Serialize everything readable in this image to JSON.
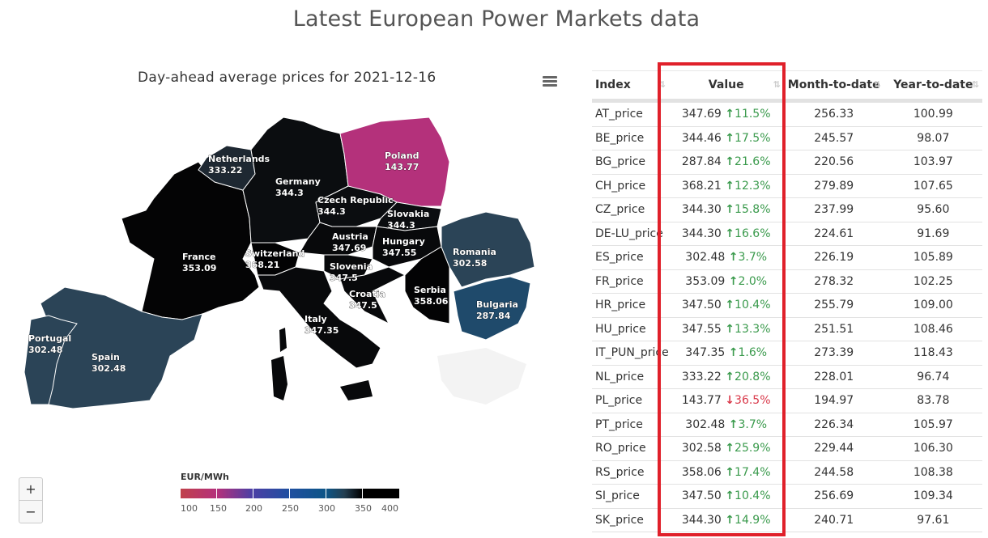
{
  "page": {
    "title": "Latest European Power Markets data"
  },
  "map": {
    "title": "Day-ahead average prices for 2021-12-16",
    "menu_icon": "hamburger-menu-icon",
    "zoom_in_label": "+",
    "zoom_out_label": "−",
    "legend": {
      "title": "EUR/MWh",
      "ticks": [
        "100",
        "150",
        "200",
        "250",
        "300",
        "350",
        "400"
      ],
      "colors": [
        "#c0414b",
        "#b5307b",
        "#4a3fa5",
        "#1f4fa0",
        "#0d5587",
        "#233f52",
        "#000000"
      ]
    },
    "countries": [
      {
        "name": "Netherlands",
        "value": "333.22",
        "color": "#1e2832"
      },
      {
        "name": "Germany",
        "value": "344.3",
        "color": "#0b0d10"
      },
      {
        "name": "Poland",
        "value": "143.77",
        "color": "#b4317b"
      },
      {
        "name": "Czech Republic",
        "value": "344.3",
        "color": "#0b0d10"
      },
      {
        "name": "Slovakia",
        "value": "344.3",
        "color": "#0b0d10"
      },
      {
        "name": "France",
        "value": "353.09",
        "color": "#040405"
      },
      {
        "name": "Switzerland",
        "value": "368.21",
        "color": "#020203"
      },
      {
        "name": "Austria",
        "value": "347.69",
        "color": "#08090b"
      },
      {
        "name": "Hungary",
        "value": "347.55",
        "color": "#08090b"
      },
      {
        "name": "Romania",
        "value": "302.58",
        "color": "#2b4457"
      },
      {
        "name": "Slovenia",
        "value": "347.5",
        "color": "#08090b"
      },
      {
        "name": "Croatia",
        "value": "347.5",
        "color": "#08090b"
      },
      {
        "name": "Serbia",
        "value": "358.06",
        "color": "#030304"
      },
      {
        "name": "Italy",
        "value": "347.35",
        "color": "#08090b"
      },
      {
        "name": "Bulgaria",
        "value": "287.84",
        "color": "#1f4a6b"
      },
      {
        "name": "Portugal",
        "value": "302.48",
        "color": "#2b4457"
      },
      {
        "name": "Spain",
        "value": "302.48",
        "color": "#2b4457"
      }
    ]
  },
  "table": {
    "headers": [
      "Index",
      "Value",
      "Month-to-date",
      "Year-to-date"
    ],
    "sort_icon": "⇅",
    "rows": [
      {
        "index": "AT_price",
        "value": "347.69",
        "arrow": "🡑",
        "change": "11.5%",
        "dir": "up",
        "mtd": "256.33",
        "ytd": "100.99"
      },
      {
        "index": "BE_price",
        "value": "344.46",
        "arrow": "🡑",
        "change": "17.5%",
        "dir": "up",
        "mtd": "245.57",
        "ytd": "98.07"
      },
      {
        "index": "BG_price",
        "value": "287.84",
        "arrow": "🡑",
        "change": "21.6%",
        "dir": "up",
        "mtd": "220.56",
        "ytd": "103.97"
      },
      {
        "index": "CH_price",
        "value": "368.21",
        "arrow": "🡑",
        "change": "12.3%",
        "dir": "up",
        "mtd": "279.89",
        "ytd": "107.65"
      },
      {
        "index": "CZ_price",
        "value": "344.30",
        "arrow": "🡑",
        "change": "15.8%",
        "dir": "up",
        "mtd": "237.99",
        "ytd": "95.60"
      },
      {
        "index": "DE-LU_price",
        "value": "344.30",
        "arrow": "🡑",
        "change": "16.6%",
        "dir": "up",
        "mtd": "224.61",
        "ytd": "91.69"
      },
      {
        "index": "ES_price",
        "value": "302.48",
        "arrow": "🡑",
        "change": "3.7%",
        "dir": "up",
        "mtd": "226.19",
        "ytd": "105.89"
      },
      {
        "index": "FR_price",
        "value": "353.09",
        "arrow": "🡑",
        "change": "2.0%",
        "dir": "up",
        "mtd": "278.32",
        "ytd": "102.25"
      },
      {
        "index": "HR_price",
        "value": "347.50",
        "arrow": "🡑",
        "change": "10.4%",
        "dir": "up",
        "mtd": "255.79",
        "ytd": "109.00"
      },
      {
        "index": "HU_price",
        "value": "347.55",
        "arrow": "🡑",
        "change": "13.3%",
        "dir": "up",
        "mtd": "251.51",
        "ytd": "108.46"
      },
      {
        "index": "IT_PUN_price",
        "value": "347.35",
        "arrow": "🡑",
        "change": "1.6%",
        "dir": "up",
        "mtd": "273.39",
        "ytd": "118.43"
      },
      {
        "index": "NL_price",
        "value": "333.22",
        "arrow": "🡑",
        "change": "20.8%",
        "dir": "up",
        "mtd": "228.01",
        "ytd": "96.74"
      },
      {
        "index": "PL_price",
        "value": "143.77",
        "arrow": "🡓",
        "change": "36.5%",
        "dir": "down",
        "mtd": "194.97",
        "ytd": "83.78"
      },
      {
        "index": "PT_price",
        "value": "302.48",
        "arrow": "🡑",
        "change": "3.7%",
        "dir": "up",
        "mtd": "226.34",
        "ytd": "105.97"
      },
      {
        "index": "RO_price",
        "value": "302.58",
        "arrow": "🡑",
        "change": "25.9%",
        "dir": "up",
        "mtd": "229.44",
        "ytd": "106.30"
      },
      {
        "index": "RS_price",
        "value": "358.06",
        "arrow": "🡑",
        "change": "17.4%",
        "dir": "up",
        "mtd": "244.58",
        "ytd": "108.38"
      },
      {
        "index": "SI_price",
        "value": "347.50",
        "arrow": "🡑",
        "change": "10.4%",
        "dir": "up",
        "mtd": "256.69",
        "ytd": "109.34"
      },
      {
        "index": "SK_price",
        "value": "344.30",
        "arrow": "🡑",
        "change": "14.9%",
        "dir": "up",
        "mtd": "240.71",
        "ytd": "97.61"
      }
    ]
  },
  "colors": {
    "up": "#3a9a4c",
    "down": "#d9394a",
    "highlight": "#e0202a"
  }
}
